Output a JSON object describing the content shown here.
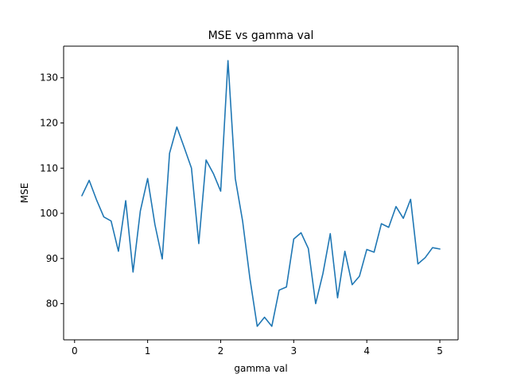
{
  "chart_data": {
    "type": "line",
    "title": "MSE vs gamma val",
    "xlabel": "gamma val",
    "ylabel": "MSE",
    "xlim": [
      -0.15,
      5.25
    ],
    "ylim": [
      72.0,
      137.0
    ],
    "xticks": [
      0,
      1,
      2,
      3,
      4,
      5
    ],
    "yticks": [
      80,
      90,
      100,
      110,
      120,
      130
    ],
    "grid": false,
    "colors": {
      "line": "#1f77b4"
    },
    "series": [
      {
        "x": [
          0.1,
          0.2,
          0.3,
          0.4,
          0.5,
          0.6,
          0.7,
          0.8,
          0.9,
          1.0,
          1.1,
          1.2,
          1.3,
          1.4,
          1.5,
          1.6,
          1.7,
          1.8,
          1.9,
          2.0,
          2.1,
          2.2,
          2.3,
          2.4,
          2.5,
          2.6,
          2.7,
          2.8,
          2.9,
          3.0,
          3.1,
          3.2,
          3.3,
          3.4,
          3.5,
          3.6,
          3.7,
          3.8,
          3.9,
          4.0,
          4.1,
          4.2,
          4.3,
          4.4,
          4.5,
          4.6,
          4.7,
          4.8,
          4.9,
          5.0
        ],
        "values": [
          103.9,
          107.3,
          103.0,
          99.2,
          98.3,
          91.6,
          102.8,
          87.0,
          100.5,
          107.7,
          97.5,
          89.9,
          113.3,
          119.1,
          114.6,
          110.0,
          93.3,
          111.8,
          108.8,
          104.9,
          133.8,
          107.7,
          98.3,
          85.6,
          75.0,
          77.0,
          75.0,
          83.0,
          83.7,
          94.3,
          95.7,
          92.2,
          80.0,
          86.7,
          95.5,
          81.3,
          91.6,
          84.2,
          86.1,
          92.0,
          91.4,
          97.7,
          96.9,
          101.5,
          98.9,
          103.1,
          88.8,
          90.2,
          92.4,
          92.1
        ]
      }
    ]
  }
}
